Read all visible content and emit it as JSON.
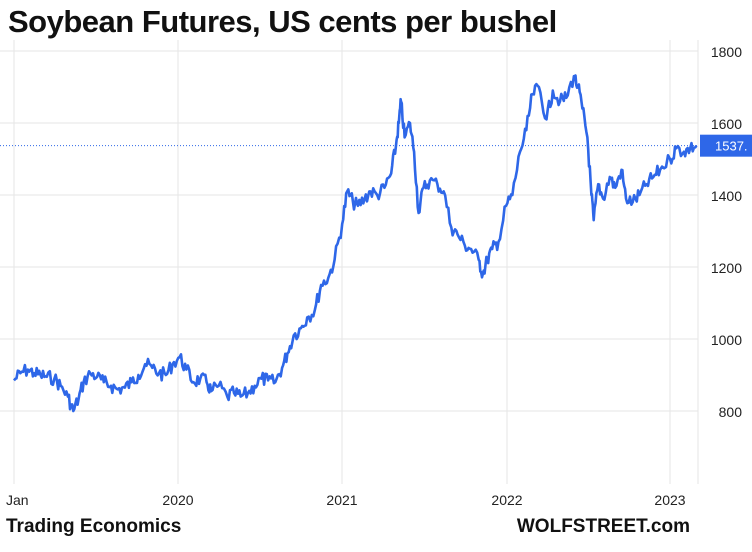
{
  "chart_data": {
    "type": "line",
    "title": "Soybean Futures, US cents per bushel",
    "xlabel": "",
    "ylabel": "",
    "x_ticks": [
      "Jan",
      "2020",
      "2021",
      "2022",
      "2023"
    ],
    "y_ticks": [
      800,
      1000,
      1200,
      1400,
      1600,
      1800
    ],
    "ylim": [
      640,
      1830
    ],
    "grid": true,
    "last_value_label": "1537.",
    "last_value": 1537,
    "series": [
      {
        "color": "#2e67e8",
        "points": [
          [
            "2019-01-01",
            885
          ],
          [
            "2019-01-15",
            905
          ],
          [
            "2019-02-01",
            915
          ],
          [
            "2019-02-15",
            905
          ],
          [
            "2019-03-01",
            900
          ],
          [
            "2019-03-15",
            895
          ],
          [
            "2019-04-01",
            890
          ],
          [
            "2019-04-15",
            870
          ],
          [
            "2019-05-01",
            840
          ],
          [
            "2019-05-13",
            800
          ],
          [
            "2019-05-25",
            835
          ],
          [
            "2019-06-05",
            880
          ],
          [
            "2019-06-20",
            905
          ],
          [
            "2019-07-05",
            895
          ],
          [
            "2019-07-20",
            880
          ],
          [
            "2019-08-05",
            870
          ],
          [
            "2019-08-20",
            860
          ],
          [
            "2019-09-05",
            865
          ],
          [
            "2019-09-20",
            880
          ],
          [
            "2019-10-05",
            900
          ],
          [
            "2019-10-20",
            930
          ],
          [
            "2019-11-05",
            920
          ],
          [
            "2019-11-20",
            905
          ],
          [
            "2019-12-05",
            900
          ],
          [
            "2019-12-20",
            930
          ],
          [
            "2020-01-05",
            950
          ],
          [
            "2020-01-20",
            915
          ],
          [
            "2020-02-05",
            880
          ],
          [
            "2020-02-20",
            890
          ],
          [
            "2020-03-05",
            880
          ],
          [
            "2020-03-15",
            855
          ],
          [
            "2020-04-01",
            870
          ],
          [
            "2020-04-20",
            840
          ],
          [
            "2020-05-05",
            850
          ],
          [
            "2020-05-20",
            840
          ],
          [
            "2020-06-05",
            850
          ],
          [
            "2020-06-20",
            870
          ],
          [
            "2020-07-05",
            890
          ],
          [
            "2020-07-20",
            885
          ],
          [
            "2020-08-05",
            880
          ],
          [
            "2020-08-20",
            920
          ],
          [
            "2020-09-01",
            960
          ],
          [
            "2020-09-15",
            1010
          ],
          [
            "2020-10-01",
            1030
          ],
          [
            "2020-10-15",
            1060
          ],
          [
            "2020-11-01",
            1080
          ],
          [
            "2020-11-15",
            1150
          ],
          [
            "2020-12-01",
            1170
          ],
          [
            "2020-12-15",
            1220
          ],
          [
            "2021-01-01",
            1320
          ],
          [
            "2021-01-12",
            1410
          ],
          [
            "2021-01-25",
            1380
          ],
          [
            "2021-02-05",
            1370
          ],
          [
            "2021-02-20",
            1390
          ],
          [
            "2021-03-05",
            1410
          ],
          [
            "2021-03-20",
            1400
          ],
          [
            "2021-04-05",
            1420
          ],
          [
            "2021-04-20",
            1460
          ],
          [
            "2021-05-01",
            1540
          ],
          [
            "2021-05-07",
            1600
          ],
          [
            "2021-05-12",
            1660
          ],
          [
            "2021-05-20",
            1560
          ],
          [
            "2021-06-01",
            1600
          ],
          [
            "2021-06-10",
            1520
          ],
          [
            "2021-06-20",
            1350
          ],
          [
            "2021-07-01",
            1420
          ],
          [
            "2021-07-15",
            1440
          ],
          [
            "2021-08-01",
            1430
          ],
          [
            "2021-08-15",
            1410
          ],
          [
            "2021-09-01",
            1310
          ],
          [
            "2021-09-15",
            1290
          ],
          [
            "2021-10-01",
            1260
          ],
          [
            "2021-10-15",
            1250
          ],
          [
            "2021-11-01",
            1220
          ],
          [
            "2021-11-10",
            1180
          ],
          [
            "2021-11-20",
            1220
          ],
          [
            "2021-12-01",
            1250
          ],
          [
            "2021-12-15",
            1270
          ],
          [
            "2022-01-01",
            1370
          ],
          [
            "2022-01-15",
            1400
          ],
          [
            "2022-02-01",
            1520
          ],
          [
            "2022-02-15",
            1580
          ],
          [
            "2022-03-01",
            1680
          ],
          [
            "2022-03-15",
            1700
          ],
          [
            "2022-04-01",
            1610
          ],
          [
            "2022-04-15",
            1690
          ],
          [
            "2022-05-01",
            1660
          ],
          [
            "2022-05-15",
            1670
          ],
          [
            "2022-06-01",
            1730
          ],
          [
            "2022-06-10",
            1700
          ],
          [
            "2022-06-20",
            1640
          ],
          [
            "2022-07-01",
            1560
          ],
          [
            "2022-07-10",
            1400
          ],
          [
            "2022-07-15",
            1330
          ],
          [
            "2022-07-25",
            1430
          ],
          [
            "2022-08-05",
            1390
          ],
          [
            "2022-08-20",
            1450
          ],
          [
            "2022-09-01",
            1420
          ],
          [
            "2022-09-15",
            1470
          ],
          [
            "2022-09-25",
            1390
          ],
          [
            "2022-10-10",
            1380
          ],
          [
            "2022-10-25",
            1400
          ],
          [
            "2022-11-10",
            1430
          ],
          [
            "2022-11-25",
            1450
          ],
          [
            "2022-12-10",
            1470
          ],
          [
            "2023-01-01",
            1500
          ],
          [
            "2023-01-15",
            1530
          ],
          [
            "2023-02-01",
            1520
          ],
          [
            "2023-02-15",
            1530
          ],
          [
            "2023-03-01",
            1537
          ]
        ]
      }
    ]
  },
  "credits": {
    "left": "Trading Economics",
    "right": "WOLFSTREET.com"
  }
}
